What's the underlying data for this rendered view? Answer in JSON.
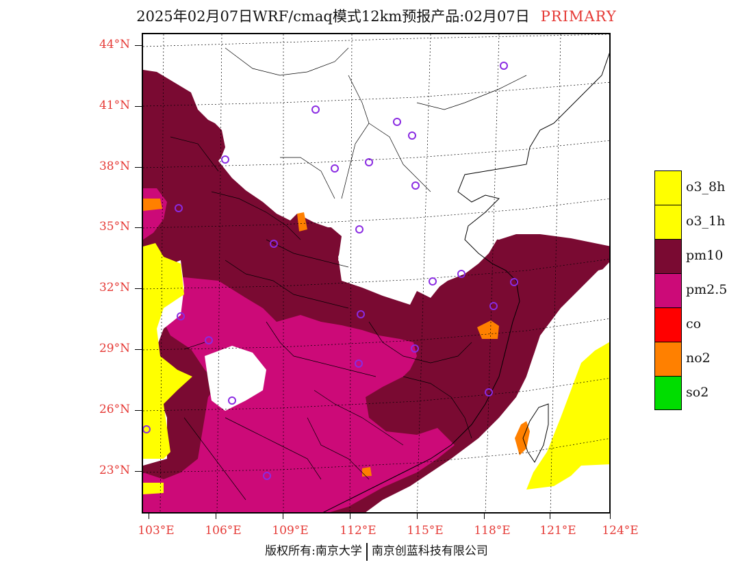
{
  "title": {
    "main": "2025年02月07日WRF/cmaq模式12km预报产品:02月07日",
    "tag": "PRIMARY"
  },
  "axes": {
    "lat_labels": [
      "44°N",
      "41°N",
      "38°N",
      "35°N",
      "32°N",
      "29°N",
      "26°N",
      "23°N"
    ],
    "lon_labels": [
      "103°E",
      "106°E",
      "109°E",
      "112°E",
      "115°E",
      "118°E",
      "121°E",
      "124°E"
    ]
  },
  "legend": {
    "items": [
      {
        "label": "o3_8h",
        "color": "#ffff00"
      },
      {
        "label": "o3_1h",
        "color": "#ffff00"
      },
      {
        "label": "pm10",
        "color": "#7a0a32"
      },
      {
        "label": "pm2.5",
        "color": "#cc0a78"
      },
      {
        "label": "co",
        "color": "#ff0000"
      },
      {
        "label": "no2",
        "color": "#ff8000"
      },
      {
        "label": "so2",
        "color": "#00dd00"
      }
    ]
  },
  "copyright": {
    "left": "版权所有:南京大学",
    "right": "南京创蓝科技有限公司"
  },
  "colors": {
    "pm10": "#7a0a32",
    "pm25": "#cc0a78",
    "no2": "#ff8000",
    "o3": "#ffff00",
    "station": "#8a2be2",
    "axis_label": "#e53935"
  }
}
